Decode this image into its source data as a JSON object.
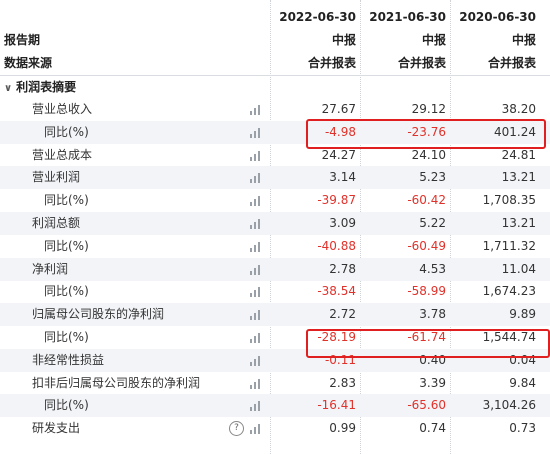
{
  "header": {
    "dates": [
      "2022-06-30",
      "2021-06-30",
      "2020-06-30"
    ],
    "row1_label": "报告期",
    "row1_values": [
      "中报",
      "中报",
      "中报"
    ],
    "row2_label": "数据来源",
    "row2_values": [
      "合并报表",
      "合并报表",
      "合并报表"
    ]
  },
  "section": {
    "caret": "∨",
    "title": "利润表摘要"
  },
  "rows": [
    {
      "label": "营业总收入",
      "values": [
        "27.67",
        "29.12",
        "38.20"
      ]
    },
    {
      "label": "同比(%)",
      "values": [
        "-4.98",
        "-23.76",
        "401.24"
      ]
    },
    {
      "label": "营业总成本",
      "values": [
        "24.27",
        "24.10",
        "24.81"
      ]
    },
    {
      "label": "营业利润",
      "values": [
        "3.14",
        "5.23",
        "13.21"
      ]
    },
    {
      "label": "同比(%)",
      "values": [
        "-39.87",
        "-60.42",
        "1,708.35"
      ]
    },
    {
      "label": "利润总额",
      "values": [
        "3.09",
        "5.22",
        "13.21"
      ]
    },
    {
      "label": "同比(%)",
      "values": [
        "-40.88",
        "-60.49",
        "1,711.32"
      ]
    },
    {
      "label": "净利润",
      "values": [
        "2.78",
        "4.53",
        "11.04"
      ]
    },
    {
      "label": "同比(%)",
      "values": [
        "-38.54",
        "-58.99",
        "1,674.23"
      ]
    },
    {
      "label": "归属母公司股东的净利润",
      "values": [
        "2.72",
        "3.78",
        "9.89"
      ]
    },
    {
      "label": "同比(%)",
      "values": [
        "-28.19",
        "-61.74",
        "1,544.74"
      ]
    },
    {
      "label": "非经常性损益",
      "values": [
        "-0.11",
        "0.40",
        "0.04"
      ]
    },
    {
      "label": "扣非后归属母公司股东的净利润",
      "values": [
        "2.83",
        "3.39",
        "9.84"
      ]
    },
    {
      "label": "同比(%)",
      "values": [
        "-16.41",
        "-65.60",
        "3,104.26"
      ]
    },
    {
      "label": "研发支出",
      "values": [
        "0.99",
        "0.74",
        "0.73"
      ],
      "help_icon": "?"
    }
  ],
  "icons": {
    "chart": "bar-chart-icon",
    "help": "question-circle-icon"
  },
  "colors": {
    "negative": "#e0322b",
    "highlight": "#e02020",
    "alt_row": "#f2f4f7"
  }
}
